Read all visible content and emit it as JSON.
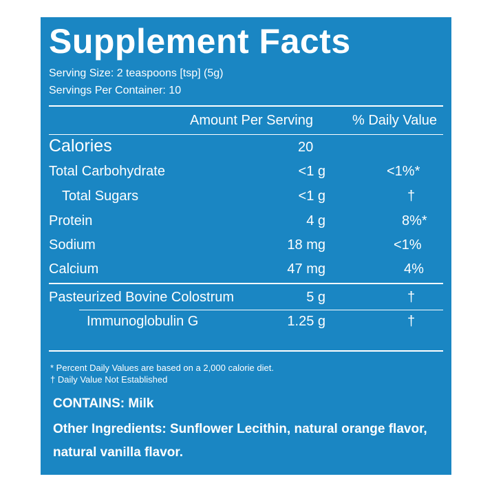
{
  "title": "Supplement Facts",
  "serving_size": "Serving Size: 2 teaspoons [tsp] (5g)",
  "servings_per_container": "Servings Per Container: 10",
  "header": {
    "amount_per_serving": "Amount Per Serving",
    "daily_value": "% Daily Value"
  },
  "calories": {
    "label": "Calories",
    "amount": "20"
  },
  "nutrients": [
    {
      "label": "Total Carbohydrate",
      "amount": "<1 g",
      "dv": "<1%*"
    },
    {
      "label": "Total Sugars",
      "amount": "<1 g",
      "dv": "†"
    },
    {
      "label": "Protein",
      "amount": "4 g",
      "dv": "8%*"
    },
    {
      "label": "Sodium",
      "amount": "18 mg",
      "dv": "<1%"
    },
    {
      "label": "Calcium",
      "amount": "47 mg",
      "dv": "4%"
    }
  ],
  "supplements": [
    {
      "label": "Pasteurized Bovine Colostrum",
      "amount": "5 g",
      "dv": "†"
    },
    {
      "label": "Immunoglobulin G",
      "amount": "1.25 g",
      "dv": "†"
    }
  ],
  "footnotes": {
    "percent_dv": "* Percent Daily Values are based on a 2,000 calorie diet.",
    "dagger": "† Daily Value Not Established"
  },
  "contains": "CONTAINS: Milk",
  "other_ingredients_line1": "Other Ingredients: Sunflower Lecithin, natural orange flavor,",
  "other_ingredients_line2": "natural vanilla flavor.",
  "colors": {
    "panel": "#1a86c3",
    "text": "#ffffff"
  }
}
